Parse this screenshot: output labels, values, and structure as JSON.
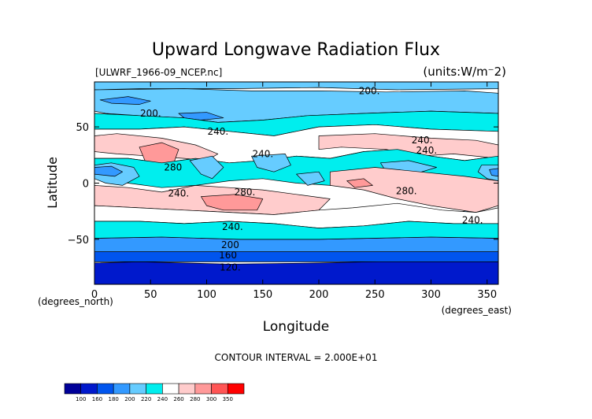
{
  "chart_data": {
    "type": "heatmap",
    "title": "Upward Longwave Radiation Flux",
    "source_label": "[ULWRF_1966-09_NCEP.nc]",
    "units_label": "(units:W/m⁻2)",
    "xlabel": "Longitude",
    "ylabel": "Latitude",
    "x_unit_label": "(degrees_east)",
    "y_unit_label": "(degrees_north)",
    "xlim": [
      0,
      360
    ],
    "ylim": [
      -90,
      90
    ],
    "x_ticks": [
      0,
      50,
      100,
      150,
      200,
      250,
      300,
      350
    ],
    "y_ticks": [
      -50,
      0,
      50
    ],
    "contour_interval_label": "CONTOUR INTERVAL = 2.000E+01",
    "contour_labels": [
      {
        "text": "200.",
        "lon": 245,
        "lat": 82
      },
      {
        "text": "200.",
        "lon": 50,
        "lat": 62
      },
      {
        "text": "240.",
        "lon": 110,
        "lat": 46
      },
      {
        "text": "240.",
        "lon": 150,
        "lat": 26
      },
      {
        "text": "240.",
        "lon": 292,
        "lat": 38
      },
      {
        "text": "240.",
        "lon": 296,
        "lat": 29
      },
      {
        "text": "280",
        "lon": 70,
        "lat": 14
      },
      {
        "text": "240.",
        "lon": 75,
        "lat": -9
      },
      {
        "text": "280.",
        "lon": 134,
        "lat": -8
      },
      {
        "text": "280.",
        "lon": 278,
        "lat": -7
      },
      {
        "text": "240.",
        "lon": 123,
        "lat": -39
      },
      {
        "text": "240.",
        "lon": 337,
        "lat": -33
      },
      {
        "text": "200",
        "lon": 121,
        "lat": -55
      },
      {
        "text": "160",
        "lon": 119,
        "lat": -64
      },
      {
        "text": "120.",
        "lon": 121,
        "lat": -75
      }
    ],
    "colorbar": {
      "levels": [
        100,
        160,
        180,
        200,
        220,
        240,
        260,
        280,
        300,
        350
      ],
      "colors": [
        "#000099",
        "#0019cc",
        "#0055ee",
        "#3399ff",
        "#66ccff",
        "#00eeee",
        "#ffffff",
        "#ffcccc",
        "#ff9999",
        "#ff5555",
        "#ff0000"
      ]
    },
    "regions": [
      {
        "value": 135,
        "poly": [
          [
            0,
            -90
          ],
          [
            360,
            -90
          ],
          [
            360,
            -70
          ],
          [
            290,
            -69
          ],
          [
            200,
            -71
          ],
          [
            120,
            -72
          ],
          [
            40,
            -70
          ],
          [
            0,
            -71
          ]
        ]
      },
      {
        "value": 170,
        "poly": [
          [
            0,
            -70
          ],
          [
            360,
            -70
          ],
          [
            360,
            -60
          ],
          [
            300,
            -59
          ],
          [
            220,
            -61
          ],
          [
            130,
            -61
          ],
          [
            60,
            -60
          ],
          [
            0,
            -61
          ]
        ]
      },
      {
        "value": 195,
        "poly": [
          [
            0,
            -61
          ],
          [
            360,
            -61
          ],
          [
            360,
            -49
          ],
          [
            300,
            -48
          ],
          [
            200,
            -50
          ],
          [
            130,
            -50
          ],
          [
            60,
            -48
          ],
          [
            0,
            -49
          ]
        ]
      },
      {
        "value": 210,
        "poly": [
          [
            0,
            90
          ],
          [
            360,
            90
          ],
          [
            360,
            84
          ],
          [
            270,
            83
          ],
          [
            200,
            85
          ],
          [
            120,
            84
          ],
          [
            40,
            84
          ],
          [
            0,
            83
          ]
        ]
      },
      {
        "value": 210,
        "poly": [
          [
            0,
            83
          ],
          [
            80,
            84
          ],
          [
            140,
            82
          ],
          [
            200,
            82
          ],
          [
            260,
            81
          ],
          [
            330,
            82
          ],
          [
            360,
            80
          ],
          [
            360,
            62
          ],
          [
            300,
            64
          ],
          [
            240,
            62
          ],
          [
            190,
            60
          ],
          [
            150,
            56
          ],
          [
            110,
            54
          ],
          [
            80,
            58
          ],
          [
            40,
            60
          ],
          [
            10,
            62
          ],
          [
            0,
            64
          ]
        ]
      },
      {
        "value": 195,
        "poly": [
          [
            5,
            74
          ],
          [
            30,
            77
          ],
          [
            50,
            73
          ],
          [
            40,
            70
          ],
          [
            15,
            71
          ]
        ]
      },
      {
        "value": 195,
        "poly": [
          [
            75,
            62
          ],
          [
            100,
            63
          ],
          [
            115,
            58
          ],
          [
            95,
            56
          ],
          [
            80,
            58
          ]
        ]
      },
      {
        "value": 230,
        "poly": [
          [
            0,
            62
          ],
          [
            40,
            60
          ],
          [
            80,
            58
          ],
          [
            110,
            54
          ],
          [
            150,
            56
          ],
          [
            190,
            60
          ],
          [
            240,
            62
          ],
          [
            300,
            64
          ],
          [
            360,
            62
          ],
          [
            360,
            46
          ],
          [
            300,
            48
          ],
          [
            250,
            52
          ],
          [
            200,
            50
          ],
          [
            160,
            42
          ],
          [
            120,
            46
          ],
          [
            80,
            50
          ],
          [
            40,
            48
          ],
          [
            0,
            48
          ]
        ]
      },
      {
        "value": 250,
        "poly": [
          [
            0,
            48
          ],
          [
            40,
            48
          ],
          [
            80,
            50
          ],
          [
            120,
            46
          ],
          [
            160,
            42
          ],
          [
            200,
            50
          ],
          [
            250,
            52
          ],
          [
            300,
            48
          ],
          [
            360,
            46
          ],
          [
            360,
            24
          ],
          [
            330,
            20
          ],
          [
            300,
            24
          ],
          [
            270,
            30
          ],
          [
            240,
            28
          ],
          [
            210,
            22
          ],
          [
            180,
            24
          ],
          [
            150,
            20
          ],
          [
            120,
            18
          ],
          [
            90,
            22
          ],
          [
            60,
            18
          ],
          [
            30,
            22
          ],
          [
            0,
            22
          ]
        ]
      },
      {
        "value": 275,
        "poly": [
          [
            0,
            42
          ],
          [
            20,
            44
          ],
          [
            60,
            40
          ],
          [
            90,
            34
          ],
          [
            110,
            26
          ],
          [
            100,
            20
          ],
          [
            80,
            22
          ],
          [
            50,
            24
          ],
          [
            20,
            26
          ],
          [
            0,
            28
          ]
        ]
      },
      {
        "value": 275,
        "poly": [
          [
            200,
            42
          ],
          [
            250,
            44
          ],
          [
            300,
            40
          ],
          [
            340,
            38
          ],
          [
            360,
            34
          ],
          [
            360,
            22
          ],
          [
            320,
            26
          ],
          [
            290,
            24
          ],
          [
            260,
            30
          ],
          [
            220,
            32
          ],
          [
            200,
            30
          ]
        ]
      },
      {
        "value": 290,
        "poly": [
          [
            40,
            32
          ],
          [
            60,
            36
          ],
          [
            75,
            30
          ],
          [
            70,
            16
          ],
          [
            55,
            14
          ],
          [
            45,
            20
          ]
        ]
      },
      {
        "value": 230,
        "poly": [
          [
            0,
            22
          ],
          [
            30,
            22
          ],
          [
            60,
            18
          ],
          [
            90,
            22
          ],
          [
            120,
            18
          ],
          [
            150,
            20
          ],
          [
            180,
            24
          ],
          [
            210,
            22
          ],
          [
            240,
            28
          ],
          [
            270,
            30
          ],
          [
            300,
            24
          ],
          [
            330,
            20
          ],
          [
            360,
            24
          ],
          [
            360,
            4
          ],
          [
            320,
            2
          ],
          [
            290,
            4
          ],
          [
            270,
            -2
          ],
          [
            240,
            -4
          ],
          [
            210,
            -2
          ],
          [
            180,
            0
          ],
          [
            150,
            4
          ],
          [
            120,
            2
          ],
          [
            90,
            -2
          ],
          [
            60,
            -4
          ],
          [
            30,
            0
          ],
          [
            0,
            4
          ]
        ]
      },
      {
        "value": 210,
        "poly": [
          [
            0,
            16
          ],
          [
            15,
            18
          ],
          [
            35,
            14
          ],
          [
            40,
            6
          ],
          [
            25,
            -2
          ],
          [
            10,
            0
          ],
          [
            0,
            4
          ]
        ]
      },
      {
        "value": 185,
        "poly": [
          [
            0,
            14
          ],
          [
            15,
            15
          ],
          [
            25,
            10
          ],
          [
            18,
            6
          ],
          [
            0,
            8
          ]
        ]
      },
      {
        "value": 210,
        "poly": [
          [
            345,
            16
          ],
          [
            360,
            16
          ],
          [
            360,
            2
          ],
          [
            350,
            4
          ],
          [
            342,
            10
          ]
        ]
      },
      {
        "value": 185,
        "poly": [
          [
            352,
            12
          ],
          [
            360,
            13
          ],
          [
            360,
            6
          ],
          [
            354,
            7
          ]
        ]
      },
      {
        "value": 210,
        "poly": [
          [
            85,
            20
          ],
          [
            105,
            24
          ],
          [
            115,
            14
          ],
          [
            105,
            4
          ],
          [
            95,
            8
          ]
        ]
      },
      {
        "value": 210,
        "poly": [
          [
            140,
            24
          ],
          [
            170,
            26
          ],
          [
            175,
            16
          ],
          [
            160,
            10
          ],
          [
            145,
            14
          ]
        ]
      },
      {
        "value": 210,
        "poly": [
          [
            180,
            8
          ],
          [
            200,
            10
          ],
          [
            205,
            2
          ],
          [
            190,
            -2
          ]
        ]
      },
      {
        "value": 210,
        "poly": [
          [
            255,
            18
          ],
          [
            280,
            20
          ],
          [
            305,
            14
          ],
          [
            285,
            8
          ],
          [
            260,
            10
          ]
        ]
      },
      {
        "value": 210,
        "poly": [
          [
            288,
            -32
          ],
          [
            300,
            -28
          ],
          [
            306,
            -34
          ],
          [
            296,
            -38
          ]
        ]
      },
      {
        "value": 210,
        "poly": [
          [
            320,
            -28
          ],
          [
            332,
            -24
          ],
          [
            336,
            -30
          ],
          [
            325,
            -34
          ]
        ]
      },
      {
        "value": 270,
        "poly": [
          [
            210,
            10
          ],
          [
            250,
            14
          ],
          [
            290,
            10
          ],
          [
            330,
            6
          ],
          [
            360,
            2
          ],
          [
            360,
            -20
          ],
          [
            340,
            -26
          ],
          [
            300,
            -20
          ],
          [
            270,
            -14
          ],
          [
            240,
            -6
          ],
          [
            210,
            -2
          ]
        ]
      },
      {
        "value": 290,
        "poly": [
          [
            225,
            2
          ],
          [
            240,
            4
          ],
          [
            248,
            -2
          ],
          [
            232,
            -4
          ]
        ]
      },
      {
        "value": 270,
        "poly": [
          [
            0,
            -2
          ],
          [
            30,
            -4
          ],
          [
            60,
            -8
          ],
          [
            90,
            -2
          ],
          [
            120,
            -4
          ],
          [
            150,
            -6
          ],
          [
            180,
            -10
          ],
          [
            210,
            -14
          ],
          [
            200,
            -24
          ],
          [
            160,
            -28
          ],
          [
            120,
            -26
          ],
          [
            80,
            -24
          ],
          [
            40,
            -22
          ],
          [
            0,
            -20
          ]
        ]
      },
      {
        "value": 290,
        "poly": [
          [
            95,
            -12
          ],
          [
            125,
            -10
          ],
          [
            150,
            -14
          ],
          [
            145,
            -24
          ],
          [
            115,
            -24
          ],
          [
            100,
            -20
          ]
        ]
      },
      {
        "value": 250,
        "poly": [
          [
            0,
            -20
          ],
          [
            40,
            -22
          ],
          [
            80,
            -24
          ],
          [
            120,
            -26
          ],
          [
            160,
            -28
          ],
          [
            200,
            -24
          ],
          [
            230,
            -22
          ],
          [
            270,
            -18
          ],
          [
            310,
            -24
          ],
          [
            340,
            -26
          ],
          [
            360,
            -22
          ],
          [
            360,
            -36
          ],
          [
            320,
            -36
          ],
          [
            280,
            -34
          ],
          [
            240,
            -38
          ],
          [
            200,
            -40
          ],
          [
            160,
            -36
          ],
          [
            120,
            -34
          ],
          [
            80,
            -36
          ],
          [
            40,
            -34
          ],
          [
            0,
            -34
          ]
        ]
      },
      {
        "value": 230,
        "poly": [
          [
            0,
            -34
          ],
          [
            40,
            -34
          ],
          [
            80,
            -36
          ],
          [
            120,
            -34
          ],
          [
            160,
            -36
          ],
          [
            200,
            -40
          ],
          [
            240,
            -38
          ],
          [
            280,
            -34
          ],
          [
            320,
            -36
          ],
          [
            360,
            -36
          ],
          [
            360,
            -49
          ],
          [
            300,
            -48
          ],
          [
            200,
            -50
          ],
          [
            130,
            -50
          ],
          [
            60,
            -48
          ],
          [
            0,
            -49
          ]
        ]
      }
    ]
  }
}
